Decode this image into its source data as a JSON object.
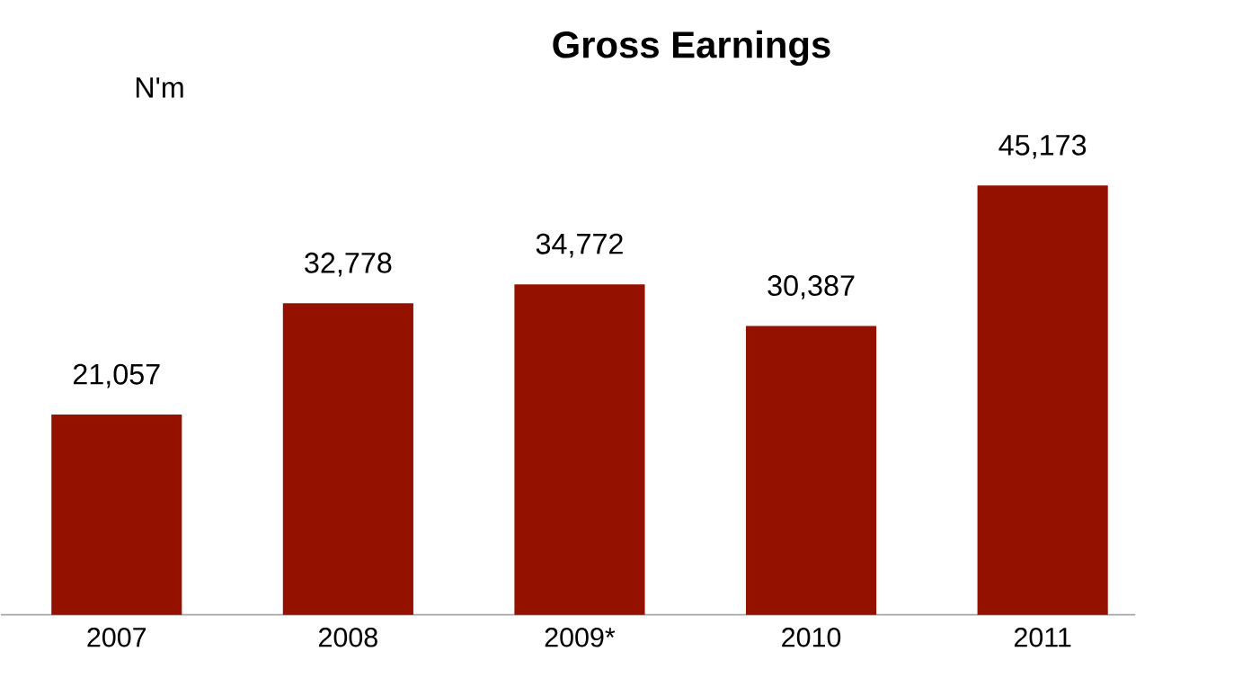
{
  "chart_data": {
    "type": "bar",
    "title": "Gross Earnings",
    "ylabel": "N'm",
    "categories": [
      "2007",
      "2008",
      "2009*",
      "2010",
      "2011"
    ],
    "values": [
      21057,
      32778,
      34772,
      30387,
      45173
    ],
    "value_labels": [
      "21,057",
      "32,778",
      "34,772",
      "30,387",
      "45,173"
    ],
    "color": "#941100"
  }
}
